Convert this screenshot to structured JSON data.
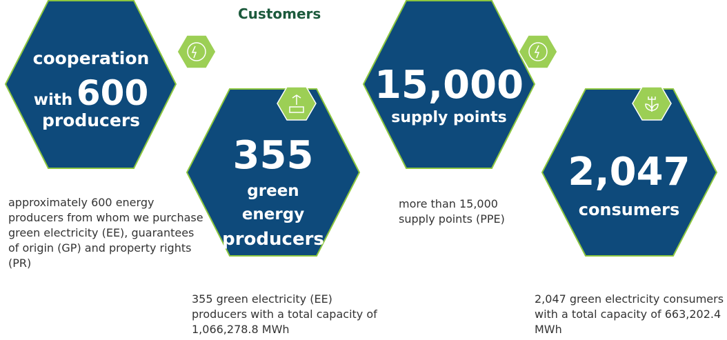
{
  "title": "Customers",
  "items": [
    {
      "hexagon": [
        "cooperation",
        "with",
        "600",
        "producers"
      ],
      "description": "approximately 600 energy producers from whom we purchase green electricity (EE), guarantees of origin (GP) and property rights (PR)"
    },
    {
      "hexagon": [
        "355",
        "green",
        "energy",
        "producers"
      ],
      "description": "355 green electricity (EE) producers with a total capacity of 1,066,278.8 MWh"
    },
    {
      "hexagon": [
        "15,000",
        "supply points"
      ],
      "description": "more than 15,000 supply points (PPE)"
    },
    {
      "hexagon": [
        "2,047",
        "consumers"
      ],
      "description": "2,047 green electricity consumers with a total capacity of 663,202.4 MWh"
    }
  ]
}
